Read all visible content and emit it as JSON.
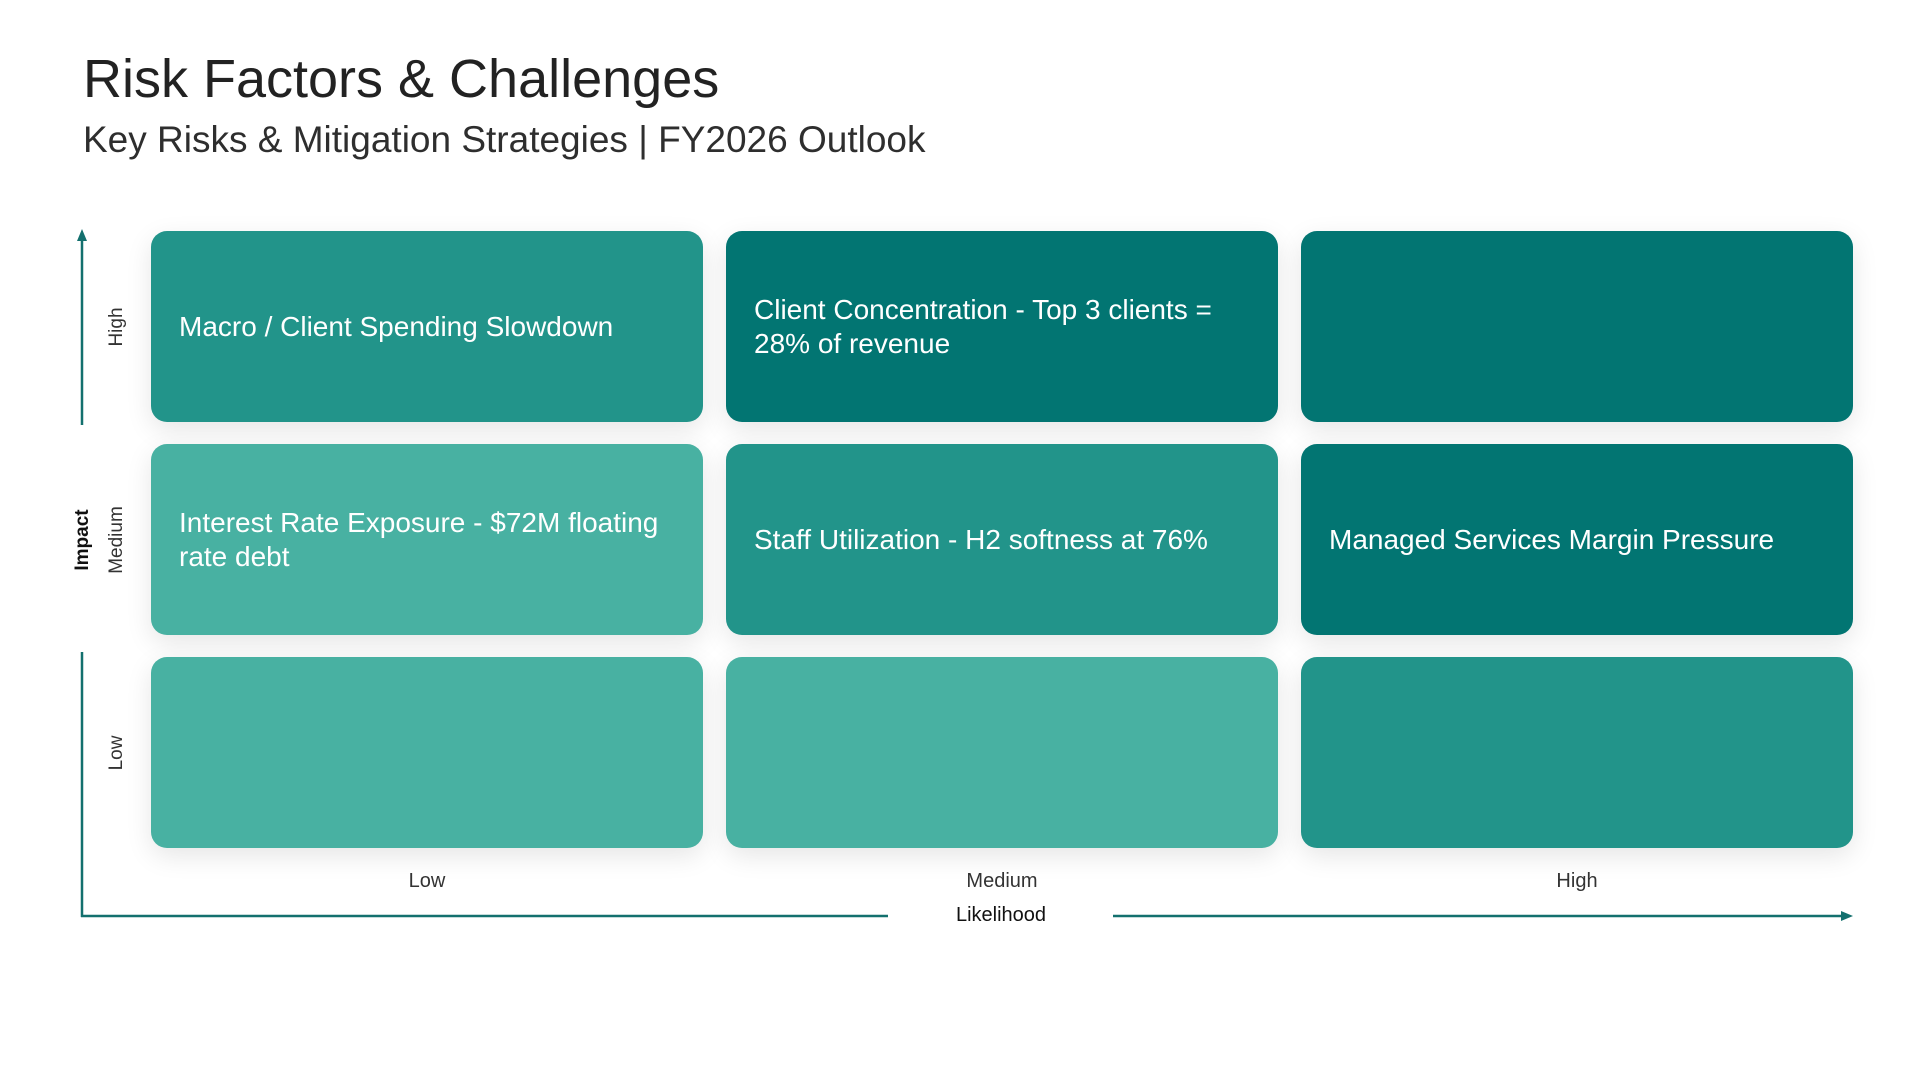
{
  "header": {
    "title": "Risk Factors & Challenges",
    "subtitle": "Key Risks & Mitigation Strategies | FY2026 Outlook"
  },
  "axes": {
    "y_title": "Impact",
    "x_title": "Likelihood",
    "y_levels": [
      "High",
      "Medium",
      "Low"
    ],
    "x_levels": [
      "Low",
      "Medium",
      "High"
    ],
    "color": "#13706e"
  },
  "colors": {
    "light": "#48b1a2",
    "medium": "#22948a",
    "dark": "#027572"
  },
  "matrix": [
    [
      {
        "label": "Macro / Client Spending Slowdown",
        "shade": "medium"
      },
      {
        "label": "Client Concentration - Top 3 clients = 28% of revenue",
        "shade": "dark"
      },
      {
        "label": "",
        "shade": "dark"
      }
    ],
    [
      {
        "label": "Interest Rate Exposure - $72M floating rate debt",
        "shade": "light"
      },
      {
        "label": "Staff Utilization - H2 softness at 76%",
        "shade": "medium"
      },
      {
        "label": "Managed Services Margin Pressure",
        "shade": "dark"
      }
    ],
    [
      {
        "label": "",
        "shade": "light"
      },
      {
        "label": "",
        "shade": "light"
      },
      {
        "label": "",
        "shade": "medium"
      }
    ]
  ]
}
